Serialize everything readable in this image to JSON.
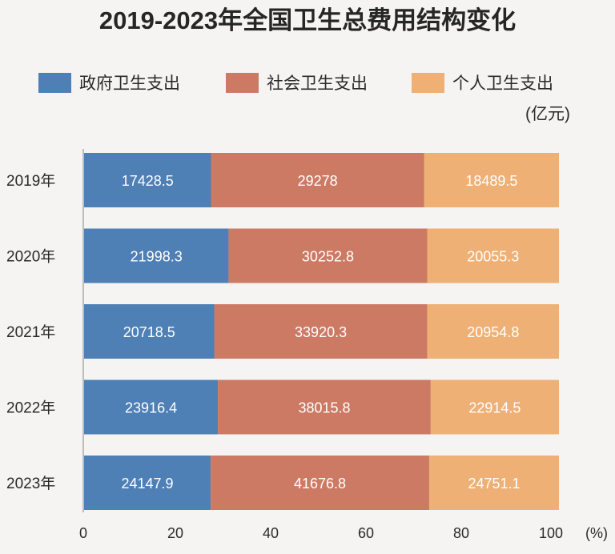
{
  "chart_data": {
    "type": "bar",
    "orientation": "horizontal",
    "stacked": true,
    "normalized": true,
    "title": "2019-2023年全国卫生总费用结构变化",
    "unit": "(亿元)",
    "x_unit": "(%)",
    "xlim": [
      0,
      100
    ],
    "xticks": [
      "0",
      "20",
      "40",
      "60",
      "80",
      "100"
    ],
    "categories": [
      "2019年",
      "2020年",
      "2021年",
      "2022年",
      "2023年"
    ],
    "series": [
      {
        "name": "政府卫生支出",
        "color": "#4e7fb5",
        "values": [
          17428.5,
          21998.3,
          20718.5,
          23916.4,
          24147.9
        ],
        "labels": [
          "17428.5",
          "21998.3",
          "20718.5",
          "23916.4",
          "24147.9"
        ]
      },
      {
        "name": "社会卫生支出",
        "color": "#cd7a64",
        "values": [
          29278,
          30252.8,
          33920.3,
          38015.8,
          41676.8
        ],
        "labels": [
          "29278",
          "30252.8",
          "33920.3",
          "38015.8",
          "41676.8"
        ]
      },
      {
        "name": "个人卫生支出",
        "color": "#eeb075",
        "values": [
          18489.5,
          20055.3,
          20954.8,
          22914.5,
          24751.1
        ],
        "labels": [
          "18489.5",
          "20055.3",
          "20954.8",
          "22914.5",
          "24751.1"
        ]
      }
    ],
    "legend_position": "top",
    "grid": false
  }
}
